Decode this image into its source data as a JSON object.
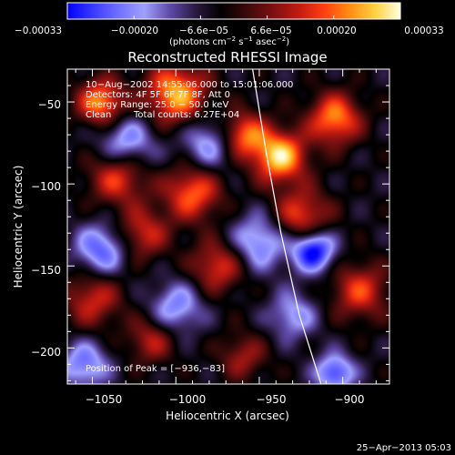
{
  "chart_data": {
    "type": "heatmap",
    "title": "Reconstructed RHESSI Image",
    "xlabel": "Heliocentric X (arcsec)",
    "ylabel": "Heliocentric Y (arcsec)",
    "xlim": [
      -1065,
      -872
    ],
    "ylim": [
      -222,
      -30
    ],
    "x_ticks": [
      -1050,
      -1000,
      -950,
      -900
    ],
    "y_ticks": [
      -50,
      -100,
      -150,
      -200
    ],
    "x_tick_labels": [
      "−1050",
      "−1000",
      "−950",
      "−900"
    ],
    "y_tick_labels": [
      "−50",
      "−100",
      "−150",
      "−200"
    ],
    "colorbar": {
      "range": [
        -0.00033,
        0.00033
      ],
      "tick_labels": [
        "−0.00033",
        "−0.00020",
        "−6.6e−05",
        "6.6e−05",
        "0.00020",
        "0.00033"
      ],
      "unit_text": "(photons cm",
      "unit_parts": [
        "(photons cm",
        "−2",
        " s",
        "−1",
        " asec",
        "−2",
        ")"
      ],
      "stops": [
        "#0000ff",
        "#3a3aff",
        "#7070ff",
        "#a0a0ff",
        "#5f4aa8",
        "#2a1a40",
        "#000000",
        "#3a0a0a",
        "#7a1010",
        "#c01a10",
        "#ff3d10",
        "#ff8c10",
        "#ffd040",
        "#ffffe0"
      ]
    },
    "annotations": [
      "10−Aug−2002 14:55:06.000 to 15:01:06.000",
      "Detectors: 4F 5F 6F 7F 8F, Att 0",
      "Energy Range: 25.0 − 50.0 keV",
      "Clean",
      "Total counts: 6.27E+04"
    ],
    "peak_label": "Position of Peak = [−936,−83]",
    "peak": [
      -936,
      -83
    ],
    "limb_curve_x": [
      -954,
      -946,
      -937,
      -926,
      -913
    ],
    "limb_curve_y": [
      -30,
      -80,
      -130,
      -180,
      -222
    ],
    "field_blobs": [
      {
        "x": -1045,
        "y": -50,
        "amp": 0.00028,
        "r": 10
      },
      {
        "x": -1035,
        "y": -95,
        "amp": 0.00022,
        "r": 12
      },
      {
        "x": -1020,
        "y": -130,
        "amp": 0.00018,
        "r": 11
      },
      {
        "x": -1000,
        "y": -45,
        "amp": 0.0003,
        "r": 13
      },
      {
        "x": -990,
        "y": -105,
        "amp": 0.00024,
        "r": 12
      },
      {
        "x": -975,
        "y": -150,
        "amp": 0.0002,
        "r": 11
      },
      {
        "x": -960,
        "y": -70,
        "amp": 0.00026,
        "r": 10
      },
      {
        "x": -938,
        "y": -83,
        "amp": 0.00033,
        "r": 11
      },
      {
        "x": -925,
        "y": -120,
        "amp": 0.00022,
        "r": 12
      },
      {
        "x": -905,
        "y": -60,
        "amp": 0.00027,
        "r": 11
      },
      {
        "x": -890,
        "y": -165,
        "amp": 0.0002,
        "r": 12
      },
      {
        "x": -1050,
        "y": -170,
        "amp": 0.00018,
        "r": 12
      },
      {
        "x": -1015,
        "y": -195,
        "amp": 0.00016,
        "r": 10
      },
      {
        "x": -960,
        "y": -205,
        "amp": 0.00014,
        "r": 10
      },
      {
        "x": -1030,
        "y": -75,
        "amp": -0.0002,
        "r": 12
      },
      {
        "x": -980,
        "y": -75,
        "amp": -0.00018,
        "r": 12
      },
      {
        "x": -950,
        "y": -135,
        "amp": -0.0002,
        "r": 12
      },
      {
        "x": -918,
        "y": -140,
        "amp": -0.00033,
        "r": 9
      },
      {
        "x": -905,
        "y": -215,
        "amp": -0.00025,
        "r": 8
      },
      {
        "x": -1045,
        "y": -140,
        "amp": -0.00022,
        "r": 11
      },
      {
        "x": -1000,
        "y": -175,
        "amp": -0.00018,
        "r": 11
      },
      {
        "x": -1055,
        "y": -210,
        "amp": -0.0002,
        "r": 10
      },
      {
        "x": -930,
        "y": -180,
        "amp": -0.00016,
        "r": 10
      }
    ]
  },
  "footer_timestamp": "25−Apr−2013 05:03"
}
